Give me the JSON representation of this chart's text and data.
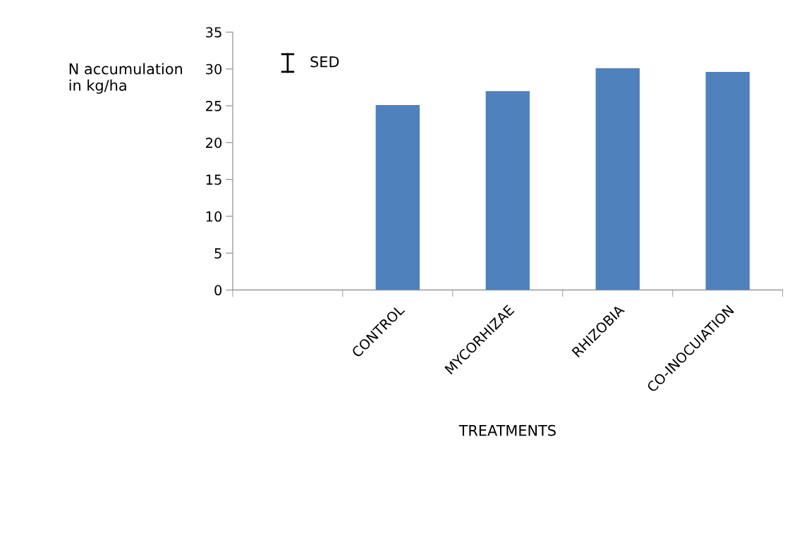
{
  "chart_data": {
    "type": "bar",
    "xlabel": "TREATMENTS",
    "ylabel": "N accumulation\nin kg/ha",
    "categories": [
      null,
      "CONTROL",
      "MYCORHIZAE",
      "RHIZOBIA",
      "CO-INOCUIATION"
    ],
    "values": [
      null,
      25.1,
      27.0,
      30.1,
      29.6
    ],
    "color": "#4f81bd",
    "ylim": [
      0,
      35
    ],
    "yticks": [
      0,
      5,
      10,
      15,
      20,
      25,
      30,
      35
    ],
    "grid": false,
    "annotations": [
      "SED"
    ]
  }
}
